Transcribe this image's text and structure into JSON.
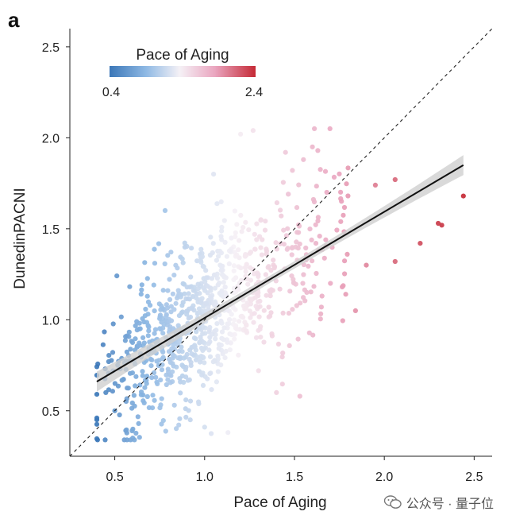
{
  "panel_label": "a",
  "watermark": {
    "text": "公众号 · 量子位"
  },
  "chart_data": {
    "type": "scatter",
    "title": "",
    "xlabel": "Pace of Aging",
    "ylabel": "DunedinPACNI",
    "xlim": [
      0.25,
      2.6
    ],
    "ylim": [
      0.25,
      2.6
    ],
    "xticks": [
      "0.5",
      "1.0",
      "1.5",
      "2.0",
      "2.5"
    ],
    "yticks": [
      "0.5",
      "1.0",
      "1.5",
      "2.0",
      "2.5"
    ],
    "grid": false,
    "colorbar": {
      "title": "Pace of Aging",
      "min_label": "0.4",
      "max_label": "2.4",
      "colors": [
        "#3b77b8",
        "#8fb9e4",
        "#f5f1f6",
        "#eaa6c0",
        "#c52a36"
      ]
    },
    "identity_line": {
      "style": "dashed",
      "color": "#222222"
    },
    "regression": {
      "x": [
        0.4,
        2.44
      ],
      "y": [
        0.66,
        1.85
      ],
      "ci_width_ends": 0.055,
      "ci_width_mid": 0.02,
      "line_color": "#111111",
      "band_color": "#cfcfcf"
    },
    "n_points": 900,
    "point_cloud": {
      "x_center": 0.95,
      "x_spread": 0.26,
      "y_residual_sd": 0.2,
      "highlighted": [
        [
          0.4,
          0.46
        ],
        [
          0.45,
          0.6
        ],
        [
          0.5,
          0.5
        ],
        [
          0.6,
          0.35
        ],
        [
          0.78,
          1.6
        ],
        [
          1.05,
          1.8
        ],
        [
          1.2,
          2.02
        ],
        [
          1.27,
          2.04
        ],
        [
          1.45,
          1.92
        ],
        [
          1.55,
          1.88
        ],
        [
          1.6,
          1.95
        ],
        [
          1.63,
          1.93
        ],
        [
          1.68,
          1.7
        ],
        [
          1.95,
          1.74
        ],
        [
          2.06,
          1.77
        ],
        [
          2.2,
          1.42
        ],
        [
          2.3,
          1.53
        ],
        [
          2.32,
          1.52
        ],
        [
          2.44,
          1.68
        ],
        [
          2.06,
          1.32
        ],
        [
          1.9,
          1.3
        ],
        [
          1.84,
          1.05
        ],
        [
          1.65,
          1.07
        ],
        [
          1.7,
          1.2
        ],
        [
          1.3,
          0.72
        ],
        [
          1.4,
          0.6
        ],
        [
          1.53,
          0.58
        ],
        [
          1.13,
          0.38
        ],
        [
          1.0,
          0.41
        ],
        [
          0.92,
          0.45
        ]
      ]
    }
  }
}
